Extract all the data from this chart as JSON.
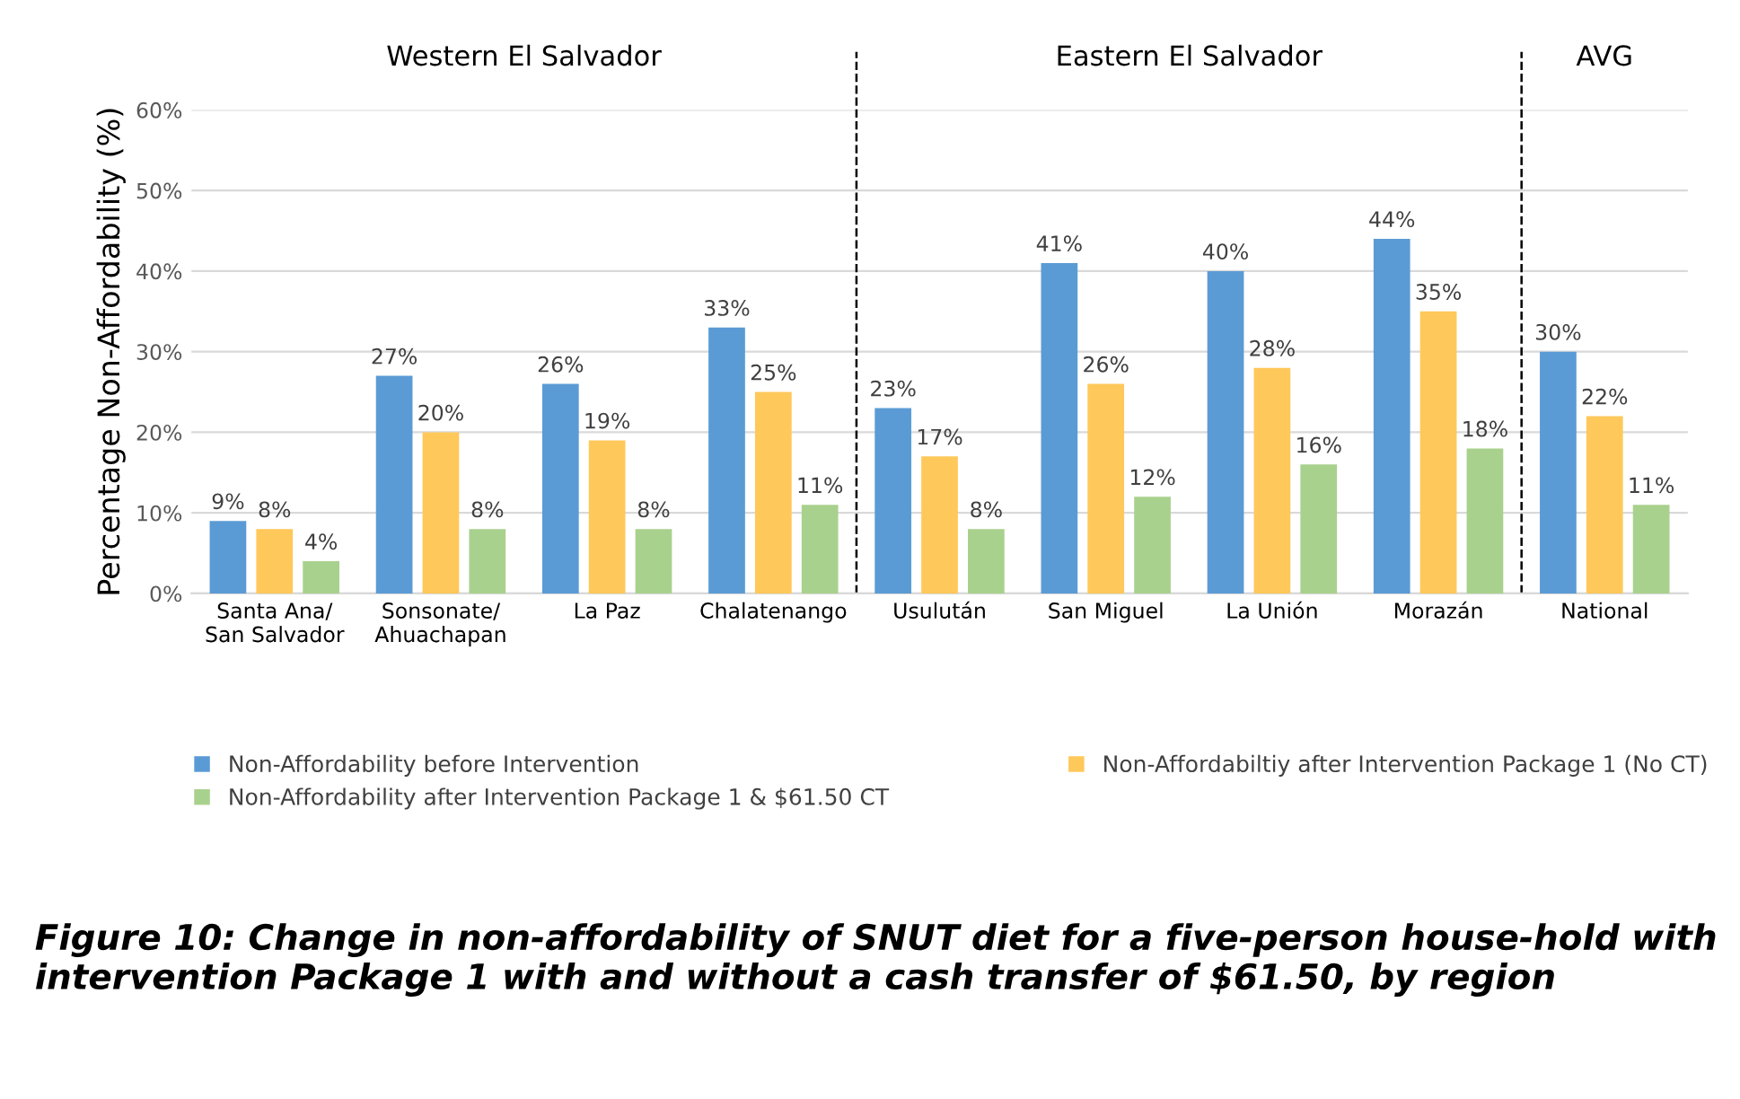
{
  "chart_data": {
    "type": "bar",
    "ylabel": "Percentage Non-Affordability (%)",
    "categories": [
      "Santa Ana/\nSan Salvador",
      "Sonsonate/\nAhuachapan",
      "La Paz",
      "Chalatenango",
      "Usulután",
      "San Miguel",
      "La Unión",
      "Morazán",
      "National"
    ],
    "series": [
      {
        "name": "Non-Affordability before Intervention",
        "color": "#5b9bd5",
        "values": [
          9,
          27,
          26,
          33,
          23,
          41,
          40,
          44,
          30
        ],
        "value_labels": [
          "9%",
          "27%",
          "26%",
          "33%",
          "23%",
          "41%",
          "40%",
          "44%",
          "30%"
        ]
      },
      {
        "name": "Non-Affordabiltiy after Intervention Package 1 (No CT)",
        "color": "#ffc85a",
        "values": [
          8,
          20,
          19,
          25,
          17,
          26,
          28,
          35,
          22
        ],
        "value_labels": [
          "8%",
          "20%",
          "19%",
          "25%",
          "17%",
          "26%",
          "28%",
          "35%",
          "22%"
        ]
      },
      {
        "name": "Non-Affordability after Intervention Package 1 & $61.50 CT",
        "color": "#a9d18e",
        "values": [
          4,
          8,
          8,
          11,
          8,
          12,
          16,
          18,
          11
        ],
        "value_labels": [
          "4%",
          "8%",
          "8%",
          "11%",
          "8%",
          "12%",
          "16%",
          "18%",
          "11%"
        ]
      }
    ],
    "ylim": [
      0,
      60
    ],
    "yticks": [
      {
        "value": 0,
        "label": "0%"
      },
      {
        "value": 10,
        "label": "10%"
      },
      {
        "value": 20,
        "label": "20%"
      },
      {
        "value": 30,
        "label": "30%"
      },
      {
        "value": 40,
        "label": "40%"
      },
      {
        "value": 50,
        "label": "50%"
      },
      {
        "value": 60,
        "label": "60%"
      }
    ],
    "grid": "y",
    "legend": "bottom",
    "annotations": [
      "Western El Salvador",
      "Eastern El Salvador",
      "AVG",
      "Figure 10: Change in non-affordability of SNUT diet for a five-person house-hold with intervention Package 1 with and without a cash transfer of $61.50, by region"
    ]
  }
}
